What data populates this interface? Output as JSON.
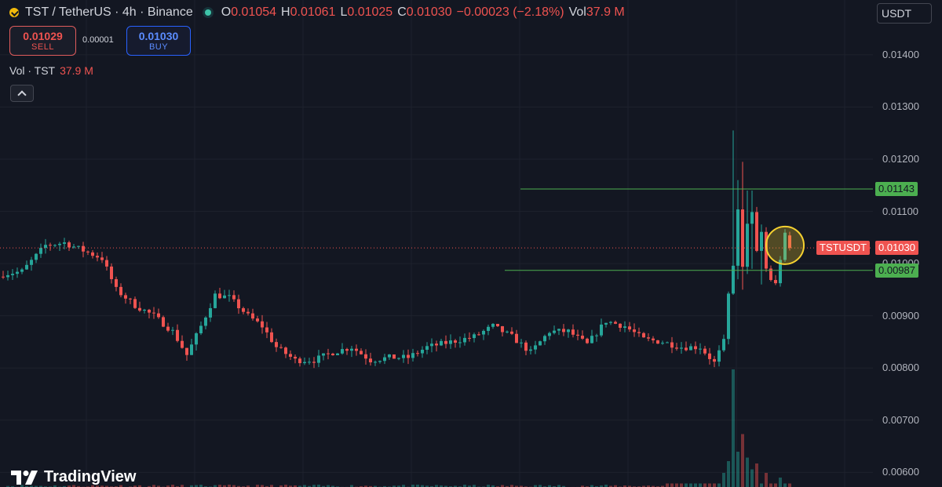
{
  "header": {
    "title": "TST / TetherUS · 4h · Binance",
    "o_label": "O",
    "o_value": "0.01054",
    "h_label": "H",
    "h_value": "0.01061",
    "l_label": "L",
    "l_value": "0.01025",
    "c_label": "C",
    "c_value": "0.01030",
    "change": "−0.00023 (−2.18%)",
    "vol_label": "Vol",
    "vol_value": "37.9 M"
  },
  "trade": {
    "sell_price": "0.01029",
    "sell_label": "SELL",
    "spread": "0.00001",
    "buy_price": "0.01030",
    "buy_label": "BUY"
  },
  "volume_indicator": {
    "label": "Vol · TST",
    "value": "37.9 M"
  },
  "currency_button": "USDT",
  "logo_text": "TradingView",
  "colors": {
    "up": "#26a69a",
    "down": "#ef5350",
    "level": "#4caf50",
    "highlight": "#f5d130",
    "background": "#131722"
  },
  "chart_data": {
    "type": "candlestick",
    "symbol_label": "TSTUSDT",
    "ylim": [
      0.00572,
      0.01505
    ],
    "y_ticks": [
      "0.01400",
      "0.01300",
      "0.01200",
      "0.01100",
      "0.01000",
      "0.00900",
      "0.00800",
      "0.00700",
      "0.00600"
    ],
    "last_price": "0.01030",
    "levels": [
      {
        "label": "0.01143",
        "value": 0.01143
      },
      {
        "label": "0.00987",
        "value": 0.00987
      }
    ],
    "anchors": [
      [
        0,
        0.0098
      ],
      [
        4,
        0.00985
      ],
      [
        9,
        0.01035
      ],
      [
        13,
        0.0104
      ],
      [
        17,
        0.01025
      ],
      [
        21,
        0.0101
      ],
      [
        24,
        0.0095
      ],
      [
        28,
        0.0092
      ],
      [
        32,
        0.009
      ],
      [
        36,
        0.0087
      ],
      [
        39,
        0.00825
      ],
      [
        42,
        0.0088
      ],
      [
        45,
        0.0094
      ],
      [
        48,
        0.00935
      ],
      [
        52,
        0.009
      ],
      [
        55,
        0.0088
      ],
      [
        58,
        0.0084
      ],
      [
        62,
        0.00815
      ],
      [
        66,
        0.00815
      ],
      [
        70,
        0.0083
      ],
      [
        74,
        0.0084
      ],
      [
        78,
        0.00815
      ],
      [
        82,
        0.0082
      ],
      [
        86,
        0.0082
      ],
      [
        90,
        0.0084
      ],
      [
        95,
        0.0085
      ],
      [
        100,
        0.0086
      ],
      [
        104,
        0.0088
      ],
      [
        108,
        0.0086
      ],
      [
        112,
        0.0083
      ],
      [
        116,
        0.0087
      ],
      [
        120,
        0.0087
      ],
      [
        124,
        0.00845
      ],
      [
        128,
        0.0089
      ],
      [
        132,
        0.0088
      ],
      [
        136,
        0.00855
      ],
      [
        140,
        0.0085
      ],
      [
        144,
        0.0084
      ],
      [
        148,
        0.0084
      ],
      [
        151,
        0.0081
      ],
      [
        153,
        0.0085
      ],
      [
        154,
        0.0094
      ],
      [
        155,
        0.01
      ],
      [
        156,
        0.011
      ],
      [
        157,
        0.0099
      ],
      [
        158,
        0.0108
      ],
      [
        159,
        0.01095
      ],
      [
        160,
        0.0102
      ],
      [
        161,
        0.0106
      ],
      [
        162,
        0.0099
      ],
      [
        163,
        0.0097
      ],
      [
        164,
        0.0096
      ],
      [
        165,
        0.0101
      ],
      [
        166,
        0.01054
      ],
      [
        167,
        0.0103
      ]
    ],
    "volumes_peak": [
      [
        153,
        0.12
      ],
      [
        154,
        0.22
      ],
      [
        155,
        1.0
      ],
      [
        156,
        0.3
      ],
      [
        157,
        0.45
      ],
      [
        158,
        0.25
      ],
      [
        159,
        0.15
      ],
      [
        160,
        0.2
      ],
      [
        162,
        0.12
      ],
      [
        165,
        0.08
      ]
    ]
  }
}
